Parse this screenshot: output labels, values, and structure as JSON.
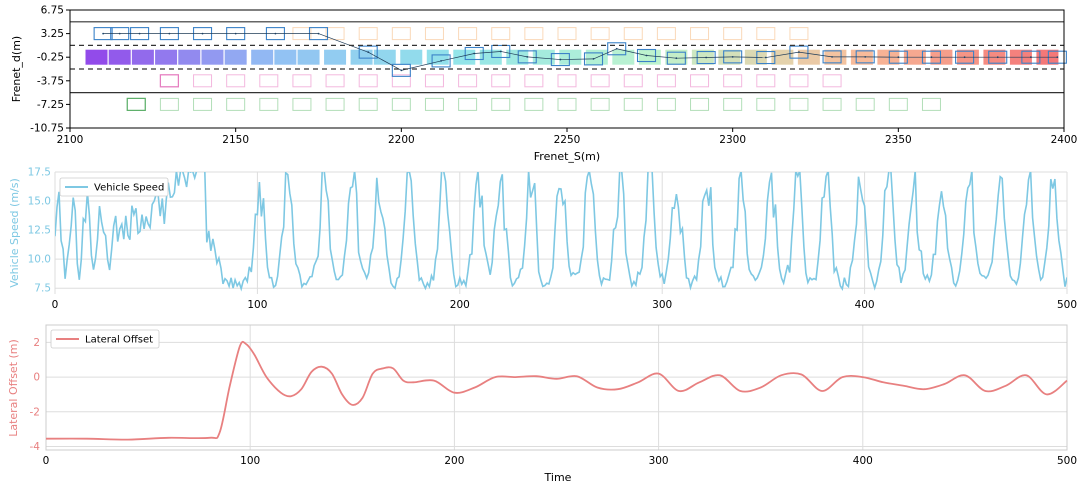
{
  "chart_data": [
    {
      "type": "scatter",
      "xlabel": "Frenet_S(m)",
      "ylabel": "Frenet_d(m)",
      "xlim": [
        2100,
        2400
      ],
      "ylim": [
        -10.75,
        6.75
      ],
      "xticks": [
        "2100",
        "2150",
        "2200",
        "2250",
        "2300",
        "2350",
        "2400"
      ],
      "yticks": [
        "6.75",
        "3.25",
        "-0.25",
        "-3.75",
        "-7.25",
        "-10.75"
      ],
      "lane_lines": [
        {
          "d": 5.0,
          "style": "solid"
        },
        {
          "d": 1.5,
          "style": "dashed"
        },
        {
          "d": -2.0,
          "style": "dashed"
        },
        {
          "d": -5.5,
          "style": "solid"
        }
      ],
      "ego_trajectory_colormap": [
        "#7f2be6",
        "#7fb3f2",
        "#7fe0e6",
        "#b3f2c4",
        "#f7b48a",
        "#f26060"
      ],
      "ego_s": [
        2108,
        2115,
        2122,
        2129,
        2136,
        2143,
        2150,
        2158,
        2165,
        2172,
        2180,
        2188,
        2195,
        2203,
        2211,
        2219,
        2227,
        2235,
        2243,
        2251,
        2259,
        2267,
        2275,
        2283,
        2291,
        2299,
        2307,
        2315,
        2323,
        2331,
        2339,
        2347,
        2355,
        2363,
        2371,
        2379,
        2387,
        2395
      ],
      "ego_d": [
        -0.25,
        -0.25,
        -0.25,
        -0.25,
        -0.25,
        -0.25,
        -0.25,
        -0.25,
        -0.25,
        -0.25,
        -0.25,
        -0.25,
        -0.25,
        -0.25,
        -0.25,
        -0.25,
        -0.25,
        -0.25,
        -0.25,
        -0.25,
        -0.25,
        -0.25,
        -0.25,
        -0.25,
        -0.25,
        -0.25,
        -0.25,
        -0.25,
        -0.25,
        -0.25,
        -0.25,
        -0.25,
        -0.25,
        -0.25,
        -0.25,
        -0.25,
        -0.25,
        -0.25
      ],
      "track_s": [
        2110,
        2115,
        2121,
        2130,
        2140,
        2150,
        2162,
        2175,
        2190,
        2200,
        2212,
        2222,
        2230,
        2238,
        2248,
        2258,
        2265,
        2274,
        2283,
        2292,
        2300,
        2310,
        2320,
        2330,
        2340,
        2350,
        2360,
        2370,
        2380,
        2390,
        2398
      ],
      "track_d": [
        3.25,
        3.25,
        3.25,
        3.25,
        3.25,
        3.25,
        3.25,
        3.25,
        0.5,
        -2.2,
        -0.8,
        0.3,
        0.6,
        -0.2,
        -0.6,
        -0.5,
        1.0,
        0.0,
        -0.4,
        -0.3,
        -0.2,
        -0.3,
        0.5,
        -0.2,
        -0.2,
        -0.25,
        -0.25,
        -0.25,
        -0.25,
        -0.25,
        -0.25
      ],
      "faint_lanes": [
        {
          "d": 3.25,
          "color": "#f9cfa8",
          "s": [
            2170,
            2180,
            2190,
            2200,
            2210,
            2220,
            2230,
            2240,
            2250,
            2260,
            2270,
            2280,
            2290,
            2300,
            2310,
            2320
          ]
        },
        {
          "d": -3.75,
          "color": "#f0a6d6",
          "s": [
            2130,
            2140,
            2150,
            2160,
            2170,
            2180,
            2190,
            2200,
            2210,
            2220,
            2230,
            2240,
            2250,
            2260,
            2270,
            2280,
            2290,
            2300,
            2310,
            2320,
            2330
          ]
        },
        {
          "d": -7.25,
          "color": "#9fd6a6",
          "s": [
            2120,
            2130,
            2140,
            2150,
            2160,
            2170,
            2180,
            2190,
            2200,
            2210,
            2220,
            2230,
            2240,
            2250,
            2260,
            2270,
            2280,
            2290,
            2300,
            2310,
            2320,
            2330,
            2340,
            2350,
            2360
          ]
        }
      ],
      "highlight_boxes": [
        {
          "s": 2130,
          "d": -3.75,
          "color": "#e57ec0"
        },
        {
          "s": 2120,
          "d": -7.25,
          "color": "#5fb06b"
        }
      ]
    },
    {
      "type": "line",
      "ylabel": "Vehicle Speed (m/s)",
      "xlabel": "",
      "xlim": [
        0,
        500
      ],
      "ylim": [
        7.0,
        17.5
      ],
      "xticks": [
        "0",
        "100",
        "200",
        "300",
        "400",
        "500"
      ],
      "yticks": [
        "7.5",
        "10.0",
        "12.5",
        "15.0",
        "17.5"
      ],
      "legend": "top-left",
      "grid": true,
      "series": [
        {
          "name": "Vehicle Speed",
          "color": "#7ec8e3",
          "values": []
        }
      ],
      "seed": 7
    },
    {
      "type": "line",
      "xlabel": "Time",
      "ylabel": "Lateral Offset (m)",
      "xlim": [
        0,
        500
      ],
      "ylim": [
        -4.2,
        3.0
      ],
      "xticks": [
        "0",
        "100",
        "200",
        "300",
        "400",
        "500"
      ],
      "yticks": [
        "2",
        "0",
        "-2",
        "-4"
      ],
      "legend": "top-left",
      "grid": true,
      "series": [
        {
          "name": "Lateral Offset",
          "color": "#e88080"
        }
      ],
      "keypoints_x": [
        0,
        20,
        40,
        60,
        80,
        85,
        90,
        95,
        98,
        102,
        108,
        115,
        120,
        125,
        130,
        135,
        140,
        145,
        150,
        155,
        160,
        165,
        170,
        175,
        180,
        190,
        200,
        210,
        220,
        230,
        240,
        250,
        260,
        270,
        280,
        290,
        300,
        310,
        320,
        330,
        340,
        350,
        360,
        370,
        380,
        390,
        400,
        410,
        420,
        430,
        440,
        450,
        460,
        470,
        480,
        490,
        500
      ],
      "keypoints_y": [
        -3.55,
        -3.55,
        -3.6,
        -3.5,
        -3.5,
        -3.2,
        -0.5,
        1.8,
        1.9,
        1.3,
        0.0,
        -0.9,
        -1.1,
        -0.7,
        0.3,
        0.6,
        0.2,
        -1.0,
        -1.6,
        -1.2,
        0.2,
        0.5,
        0.5,
        -0.2,
        -0.3,
        -0.2,
        -0.9,
        -0.6,
        0.0,
        0.0,
        0.05,
        -0.1,
        0.05,
        -0.6,
        -0.7,
        -0.3,
        0.2,
        -0.8,
        -0.3,
        0.1,
        -0.8,
        -0.6,
        0.1,
        0.15,
        -0.8,
        0.0,
        0.0,
        -0.3,
        -0.5,
        -0.7,
        -0.4,
        0.1,
        -0.8,
        -0.5,
        0.1,
        -1.0,
        -0.2
      ]
    }
  ]
}
